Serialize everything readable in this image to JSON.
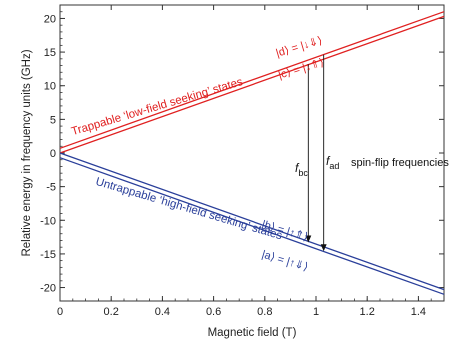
{
  "chart_data": {
    "type": "line",
    "xlabel": "Magnetic field (T)",
    "ylabel": "Relative energy in frequency units (GHz)",
    "xlim": [
      0,
      1.5
    ],
    "ylim": [
      -22,
      22
    ],
    "xticks": [
      0,
      0.2,
      0.4,
      0.6,
      0.8,
      1,
      1.2,
      1.4
    ],
    "xtick_labels": [
      "0",
      "0.2",
      "0.4",
      "0.6",
      "0.8",
      "1",
      "1.2",
      "1.4"
    ],
    "yticks": [
      -20,
      -15,
      -10,
      -5,
      0,
      5,
      10,
      15,
      20
    ],
    "ytick_labels": [
      "-20",
      "-15",
      "-10",
      "-5",
      "0",
      "5",
      "10",
      "15",
      "20"
    ],
    "grid": false,
    "series": [
      {
        "name": "|d⟩ = |↓⇓⟩",
        "color": "#e02020",
        "x": [
          0,
          1.5
        ],
        "y": [
          0.7,
          21.0
        ]
      },
      {
        "name": "|c⟩ = |↓⇑⟩",
        "color": "#e02020",
        "x": [
          0,
          1.5
        ],
        "y": [
          0.0,
          20.3
        ]
      },
      {
        "name": "|b⟩ = |↑⇑⟩",
        "color": "#2a3f9a",
        "x": [
          0,
          1.5
        ],
        "y": [
          0.0,
          -20.3
        ]
      },
      {
        "name": "|a⟩ = |↑⇓⟩",
        "color": "#2a3f9a",
        "x": [
          0,
          1.5
        ],
        "y": [
          -0.7,
          -21.0
        ]
      }
    ],
    "transitions": [
      {
        "label_main": "f",
        "label_sub": "bc",
        "x": 0.97,
        "y_from": 13.2,
        "y_to": -13.3
      },
      {
        "label_main": "f",
        "label_sub": "ad",
        "x": 1.03,
        "y_from": 14.6,
        "y_to": -14.6
      }
    ],
    "annotations": {
      "state_d": "|d⟩ = |↓⇓⟩",
      "state_c": "|c⟩ = |↓⇑⟩",
      "state_b": "|b⟩ = |↑⇑⟩",
      "state_a": "|a⟩ = |↑⇓⟩",
      "trappable": "Trappable ‘low-field seeking’ states",
      "untrappable": "Untrappable ‘high-field seeking’ states",
      "spin_flip": "spin-flip frequencies"
    }
  }
}
